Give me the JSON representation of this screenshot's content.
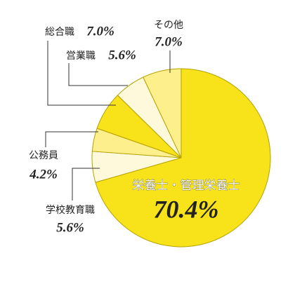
{
  "chart_data": {
    "type": "pie",
    "categories": [
      "栄養士・管理栄養士",
      "学校教育職",
      "公務員",
      "総合職",
      "営業職",
      "その他"
    ],
    "values": [
      70.4,
      5.6,
      4.2,
      7.0,
      5.6,
      7.0
    ],
    "value_labels": [
      "70.4%",
      "5.6%",
      "4.2%",
      "7.0%",
      "5.6%",
      "7.0%"
    ],
    "colors": [
      "#f8e31b",
      "#fff9dc",
      "#fcef8c",
      "#f8e31b",
      "#fff9dc",
      "#fcef8c"
    ]
  }
}
